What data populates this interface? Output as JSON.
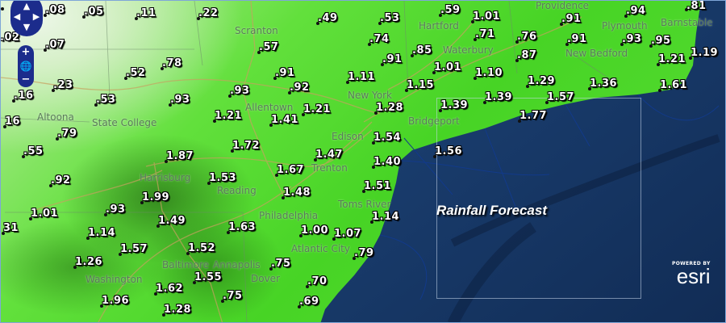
{
  "map": {
    "title": "Rainfall Forecast",
    "attribution": {
      "powered_by": "POWERED BY",
      "brand": "esri"
    },
    "colors": {
      "ocean": "#1a3c6e",
      "land_heavy": "#2a7a18",
      "land_mid": "#4fd82c",
      "land_light": "#e8f5e0",
      "control": "#1c2c8c"
    },
    "controls": {
      "pan_icons": [
        "arrow-up-icon",
        "arrow-left-icon",
        "arrow-right-icon",
        "arrow-down-icon"
      ],
      "zoom_in": "+",
      "zoom_out": "−",
      "globe_icon": "globe-icon"
    },
    "places": [
      "Scranton",
      "State College",
      "Altoona",
      "Allentown",
      "Reading",
      "Harrisburg",
      "Edison",
      "New York",
      "Hartford",
      "Waterbury",
      "Bridgeport",
      "Providence",
      "New Bedford",
      "Barnstable",
      "Plymouth",
      "Philadelphia",
      "Trenton",
      "Toms River",
      "Atlantic City",
      "Baltimore",
      "Annapolis",
      "Washington",
      "Dover"
    ],
    "rainfall_values": [
      ".02",
      ".08",
      ".05",
      ".11",
      ".22",
      ".49",
      ".07",
      ".57",
      ".78",
      ".52",
      ".91",
      "1.11",
      ".23",
      ".92",
      ".93",
      ".16",
      ".53",
      ".93",
      "1.21",
      "1.21",
      "1.41",
      "16",
      ".79",
      ".55",
      "1.72",
      "1.87",
      "1.47",
      ".53",
      ".59",
      "1.01",
      ".74",
      ".71",
      ".76",
      ".91",
      ".94",
      ".81",
      ".91",
      ".93",
      ".95",
      ".85",
      ".91",
      ".87",
      "1.19",
      "1.21",
      "1.01",
      "1.10",
      "1.29",
      "1.36",
      "1.61",
      "1.15",
      "1.39",
      "1.57",
      "1.28",
      "1.39",
      "1.77",
      "1.54",
      "1.56",
      ".92",
      "1.53",
      "1.67",
      "1.99",
      "1.48",
      ".93",
      "1.01",
      "1.49",
      "31",
      "1.63",
      "1.00",
      "1.07",
      "1.14",
      "1.57",
      "1.52",
      "1.26",
      ".75",
      ".79",
      "1.55",
      ".70",
      "1.62",
      ".75",
      "1.96",
      ".69",
      "1.28",
      "1.40",
      "1.51",
      "1.14"
    ]
  }
}
